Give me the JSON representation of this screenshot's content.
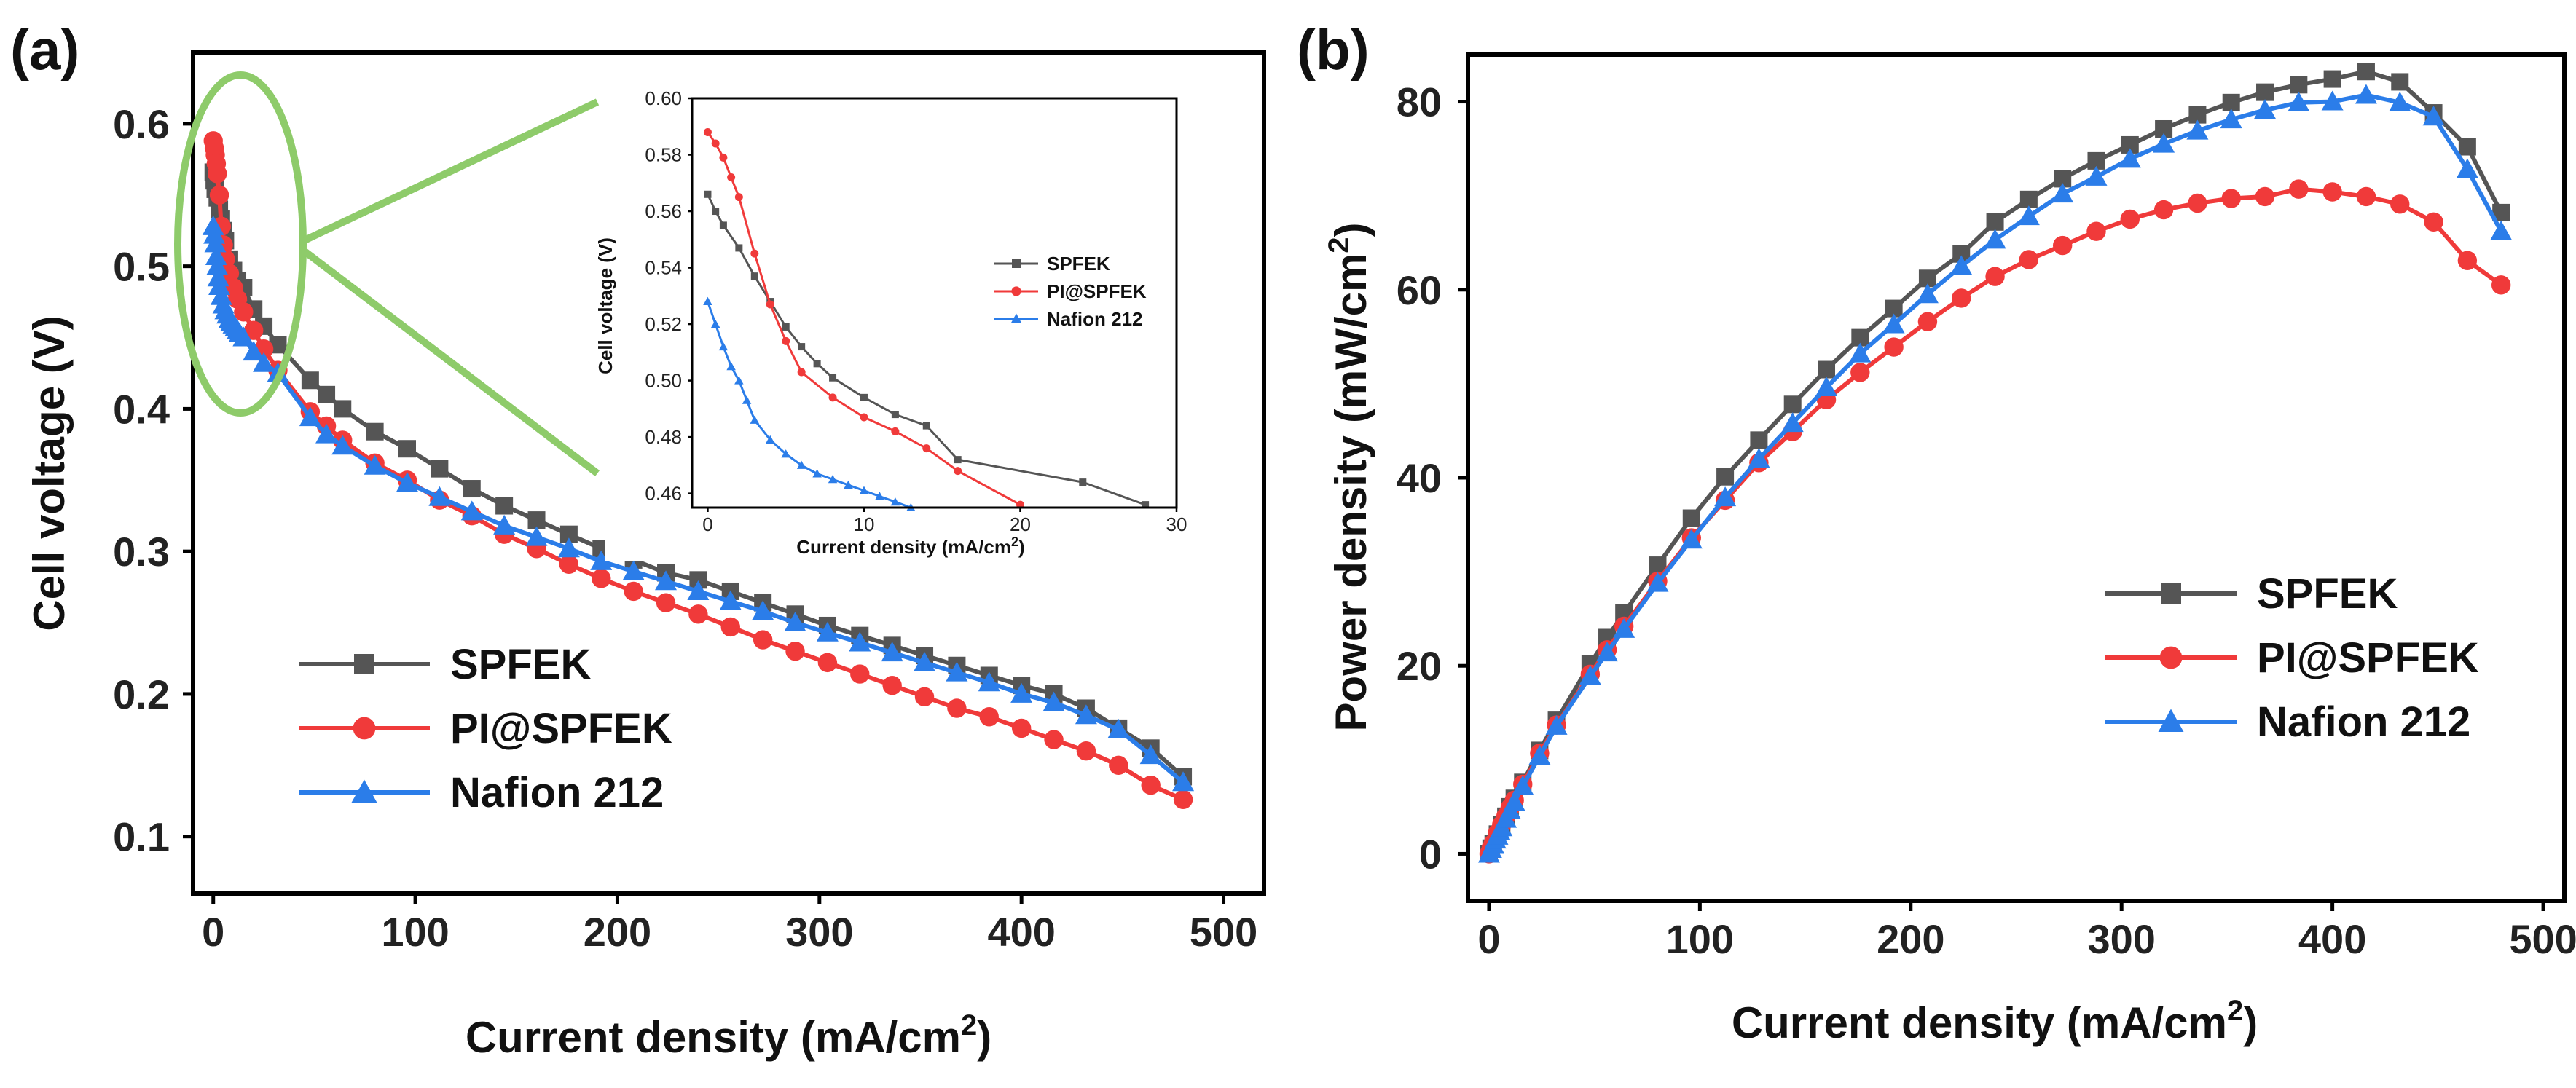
{
  "chart_data": [
    {
      "panel_label": "(a)",
      "type": "line",
      "title": "",
      "xlabel": "Current density (mA/cm",
      "xlabel_sup": "2",
      "xlabel_tail": ")",
      "ylabel": "Cell voltage (V)",
      "xlim": [
        -10,
        520
      ],
      "ylim": [
        0.06,
        0.65
      ],
      "x_ticks": [
        0,
        100,
        200,
        300,
        400,
        500
      ],
      "y_ticks": [
        0.1,
        0.2,
        0.3,
        0.4,
        0.5,
        0.6
      ],
      "x_tick_labels": [
        "0",
        "100",
        "200",
        "300",
        "400",
        "500"
      ],
      "y_tick_labels": [
        "0.1",
        "0.2",
        "0.3",
        "0.4",
        "0.5",
        "0.6"
      ],
      "legend_position": "bottom-left",
      "series": [
        {
          "name": "SPFEK",
          "color": "#555555",
          "marker": "square",
          "x": [
            0,
            0.5,
            1,
            2,
            3,
            4,
            5,
            6,
            8,
            10,
            12,
            15,
            20,
            25,
            32,
            48,
            56,
            64,
            80,
            96,
            112,
            128,
            144,
            160,
            176,
            192,
            208,
            224,
            240,
            256,
            272,
            288,
            304,
            320,
            336,
            352,
            368,
            384,
            400,
            416,
            432,
            448,
            464,
            480
          ],
          "y": [
            0.566,
            0.56,
            0.554,
            0.548,
            0.54,
            0.533,
            0.525,
            0.518,
            0.505,
            0.497,
            0.49,
            0.485,
            0.47,
            0.458,
            0.445,
            0.42,
            0.41,
            0.4,
            0.384,
            0.372,
            0.358,
            0.344,
            0.332,
            0.322,
            0.312,
            0.302,
            0.294,
            0.285,
            0.28,
            0.272,
            0.264,
            0.256,
            0.248,
            0.241,
            0.234,
            0.227,
            0.22,
            0.213,
            0.206,
            0.2,
            0.19,
            0.176,
            0.162,
            0.142
          ]
        },
        {
          "name": "PI@SPFEK",
          "color": "#f03a3a",
          "marker": "circle",
          "x": [
            0,
            0.5,
            1,
            1.5,
            2,
            3,
            4,
            5,
            6,
            8,
            10,
            12,
            15,
            20,
            25,
            32,
            48,
            56,
            64,
            80,
            96,
            112,
            128,
            144,
            160,
            176,
            192,
            208,
            224,
            240,
            256,
            272,
            288,
            304,
            320,
            336,
            352,
            368,
            384,
            400,
            416,
            432,
            448,
            464,
            480
          ],
          "y": [
            0.588,
            0.583,
            0.578,
            0.572,
            0.565,
            0.55,
            0.528,
            0.515,
            0.505,
            0.495,
            0.485,
            0.477,
            0.468,
            0.455,
            0.442,
            0.427,
            0.398,
            0.388,
            0.378,
            0.362,
            0.35,
            0.336,
            0.325,
            0.312,
            0.302,
            0.291,
            0.281,
            0.272,
            0.264,
            0.256,
            0.247,
            0.238,
            0.23,
            0.222,
            0.214,
            0.206,
            0.198,
            0.19,
            0.184,
            0.176,
            0.168,
            0.16,
            0.15,
            0.136,
            0.126
          ]
        },
        {
          "name": "Nafion 212",
          "color": "#2b7de9",
          "marker": "triangle",
          "x": [
            0,
            0.5,
            1,
            1.5,
            2,
            2.5,
            3,
            4,
            5,
            6,
            7,
            8,
            9,
            10,
            11,
            12,
            13,
            15,
            20,
            25,
            32,
            48,
            56,
            64,
            80,
            96,
            112,
            128,
            144,
            160,
            176,
            192,
            208,
            224,
            240,
            256,
            272,
            288,
            304,
            320,
            336,
            352,
            368,
            384,
            400,
            416,
            432,
            448,
            464,
            480
          ],
          "y": [
            0.528,
            0.522,
            0.516,
            0.507,
            0.5,
            0.492,
            0.486,
            0.479,
            0.473,
            0.469,
            0.466,
            0.463,
            0.461,
            0.459,
            0.457,
            0.455,
            0.453,
            0.45,
            0.44,
            0.432,
            0.425,
            0.394,
            0.382,
            0.374,
            0.36,
            0.348,
            0.338,
            0.328,
            0.318,
            0.31,
            0.302,
            0.293,
            0.286,
            0.279,
            0.272,
            0.265,
            0.258,
            0.25,
            0.243,
            0.236,
            0.229,
            0.222,
            0.215,
            0.208,
            0.2,
            0.194,
            0.185,
            0.175,
            0.157,
            0.138
          ]
        }
      ],
      "inset": {
        "xlabel": "Current density (mA/cm",
        "xlabel_sup": "2",
        "xlabel_tail": ")",
        "ylabel": "Cell voltage (V)",
        "xlim": [
          -1,
          30
        ],
        "ylim": [
          0.455,
          0.6
        ],
        "x_ticks": [
          0,
          10,
          20,
          30
        ],
        "y_ticks": [
          0.46,
          0.48,
          0.5,
          0.52,
          0.54,
          0.56,
          0.58,
          0.6
        ],
        "x_tick_labels": [
          "0",
          "10",
          "20",
          "30"
        ],
        "y_tick_labels": [
          "0.46",
          "0.48",
          "0.50",
          "0.52",
          "0.54",
          "0.56",
          "0.58",
          "0.60"
        ],
        "legend_position": "right",
        "series": [
          {
            "name": "SPFEK",
            "color": "#555555",
            "marker": "square",
            "x": [
              0,
              0.5,
              1,
              2,
              3,
              4,
              5,
              6,
              7,
              8,
              10,
              12,
              14,
              16,
              24,
              28
            ],
            "y": [
              0.566,
              0.56,
              0.555,
              0.547,
              0.537,
              0.528,
              0.519,
              0.512,
              0.506,
              0.501,
              0.494,
              0.488,
              0.484,
              0.472,
              0.464,
              0.456
            ]
          },
          {
            "name": "PI@SPFEK",
            "color": "#f03a3a",
            "marker": "circle",
            "x": [
              0,
              0.5,
              1,
              1.5,
              2,
              3,
              4,
              5,
              6,
              8,
              10,
              12,
              14,
              16,
              20
            ],
            "y": [
              0.588,
              0.584,
              0.579,
              0.572,
              0.565,
              0.545,
              0.527,
              0.514,
              0.503,
              0.494,
              0.487,
              0.482,
              0.476,
              0.468,
              0.456
            ]
          },
          {
            "name": "Nafion 212",
            "color": "#2b7de9",
            "marker": "triangle",
            "x": [
              0,
              0.5,
              1,
              1.5,
              2,
              2.5,
              3,
              4,
              5,
              6,
              7,
              8,
              9,
              10,
              11,
              12,
              13
            ],
            "y": [
              0.528,
              0.52,
              0.512,
              0.505,
              0.5,
              0.493,
              0.486,
              0.479,
              0.474,
              0.47,
              0.467,
              0.465,
              0.463,
              0.461,
              0.459,
              0.457,
              0.455
            ]
          }
        ]
      }
    },
    {
      "panel_label": "(b)",
      "type": "line",
      "title": "",
      "xlabel": "Current density (mA/cm",
      "xlabel_sup": "2",
      "xlabel_tail": ")",
      "ylabel": "Power density (mW/cm",
      "ylabel_sup": "2",
      "ylabel_tail": ")",
      "xlim": [
        -10,
        510
      ],
      "ylim": [
        -5,
        85
      ],
      "x_ticks": [
        0,
        100,
        200,
        300,
        400,
        500
      ],
      "y_ticks": [
        0,
        20,
        40,
        60,
        80
      ],
      "x_tick_labels": [
        "0",
        "100",
        "200",
        "300",
        "400",
        "500"
      ],
      "y_tick_labels": [
        "0",
        "20",
        "40",
        "60",
        "80"
      ],
      "legend_position": "bottom-right",
      "series": [
        {
          "name": "SPFEK",
          "color": "#555555",
          "marker": "square",
          "x": [
            0,
            1,
            2,
            4,
            6,
            8,
            10,
            12,
            16,
            24,
            32,
            48,
            56,
            64,
            80,
            96,
            112,
            128,
            144,
            160,
            176,
            192,
            208,
            224,
            240,
            256,
            272,
            288,
            304,
            320,
            336,
            352,
            368,
            384,
            400,
            416,
            432,
            448,
            464,
            480
          ],
          "y": [
            0,
            0.6,
            1.1,
            2.1,
            3.1,
            4.0,
            5.0,
            5.9,
            7.6,
            11.0,
            14.2,
            20.2,
            23.0,
            25.6,
            30.7,
            35.7,
            40.1,
            44.0,
            47.8,
            51.5,
            54.9,
            58.0,
            61.2,
            63.8,
            67.2,
            69.6,
            71.8,
            73.7,
            75.4,
            77.1,
            78.6,
            79.9,
            81.0,
            81.8,
            82.4,
            83.2,
            82.1,
            78.8,
            75.2,
            68.2
          ]
        },
        {
          "name": "PI@SPFEK",
          "color": "#f03a3a",
          "marker": "circle",
          "x": [
            0,
            1,
            2,
            4,
            6,
            8,
            10,
            12,
            16,
            24,
            32,
            48,
            56,
            64,
            80,
            96,
            112,
            128,
            144,
            160,
            176,
            192,
            208,
            224,
            240,
            256,
            272,
            288,
            304,
            320,
            336,
            352,
            368,
            384,
            400,
            416,
            432,
            448,
            464,
            480
          ],
          "y": [
            0,
            0.6,
            1.1,
            2.2,
            3.1,
            4.0,
            4.9,
            5.7,
            7.4,
            10.7,
            13.7,
            19.1,
            21.7,
            24.2,
            29.0,
            33.6,
            37.6,
            41.6,
            44.9,
            48.3,
            51.2,
            53.9,
            56.6,
            59.1,
            61.4,
            63.2,
            64.7,
            66.2,
            67.5,
            68.5,
            69.2,
            69.7,
            69.9,
            70.7,
            70.4,
            69.9,
            69.1,
            67.2,
            63.1,
            60.5
          ]
        },
        {
          "name": "Nafion 212",
          "color": "#2b7de9",
          "marker": "triangle",
          "x": [
            0,
            1,
            2,
            3,
            4,
            5,
            6,
            8,
            10,
            12,
            16,
            24,
            32,
            48,
            56,
            64,
            80,
            96,
            112,
            128,
            144,
            160,
            176,
            192,
            208,
            224,
            240,
            256,
            272,
            288,
            304,
            320,
            336,
            352,
            368,
            384,
            400,
            416,
            432,
            448,
            464,
            480
          ],
          "y": [
            0,
            0.5,
            1.0,
            1.5,
            1.9,
            2.4,
            2.8,
            3.7,
            4.6,
            5.5,
            7.2,
            10.4,
            13.6,
            18.9,
            21.4,
            23.9,
            28.8,
            33.4,
            37.9,
            42.0,
            45.8,
            49.6,
            53.2,
            56.3,
            59.5,
            62.5,
            65.3,
            67.8,
            70.2,
            72.0,
            73.9,
            75.5,
            76.9,
            78.1,
            79.1,
            79.9,
            80.0,
            80.7,
            79.9,
            78.4,
            72.8,
            66.2
          ]
        }
      ]
    }
  ]
}
